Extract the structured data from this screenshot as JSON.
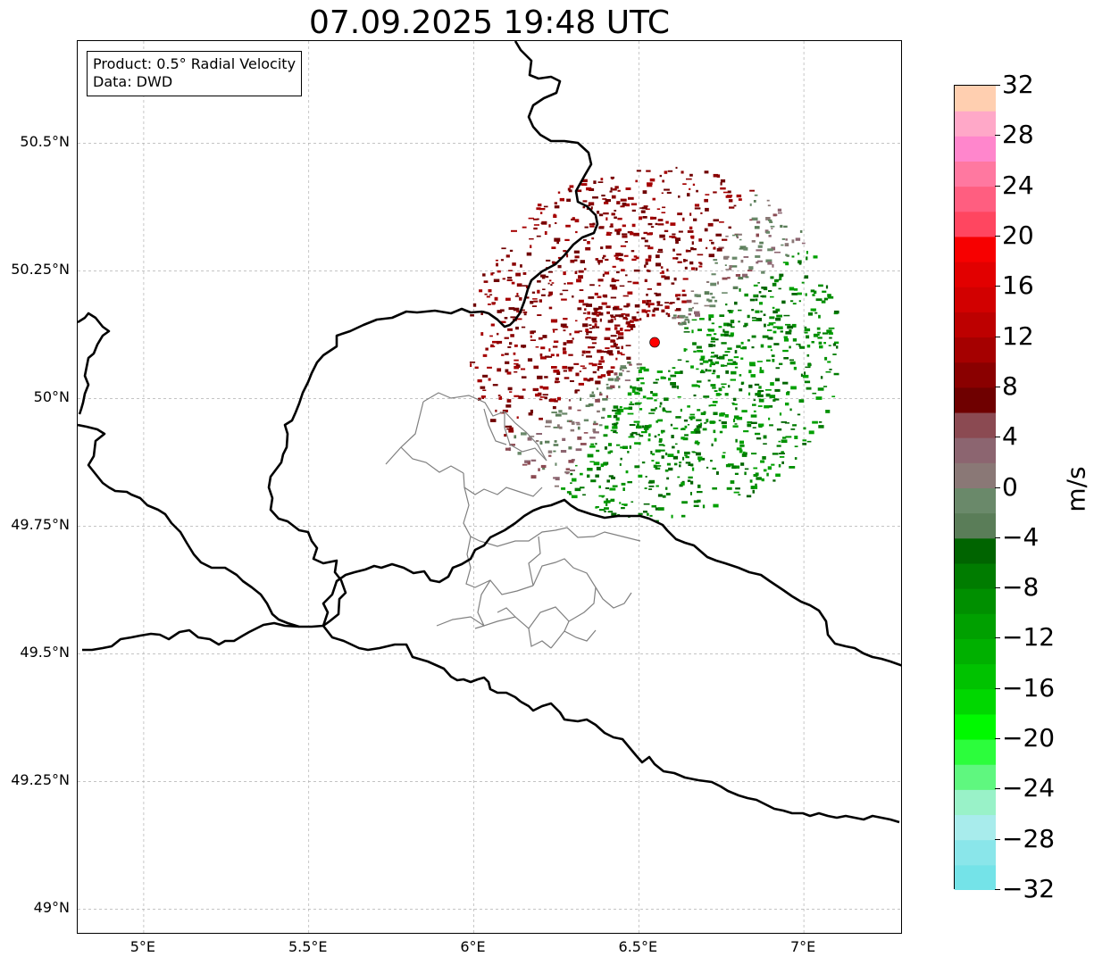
{
  "title": "07.09.2025 19:48 UTC",
  "info": {
    "product": "Product: 0.5° Radial Velocity",
    "data": "Data: DWD"
  },
  "map": {
    "extent": {
      "lon_min": 4.8,
      "lon_max": 7.3,
      "lat_min": 48.95,
      "lat_max": 50.7
    },
    "lat_ticks": [
      {
        "value": 50.5,
        "label": "50.5°N"
      },
      {
        "value": 50.25,
        "label": "50.25°N"
      },
      {
        "value": 50.0,
        "label": "50°N"
      },
      {
        "value": 49.75,
        "label": "49.75°N"
      },
      {
        "value": 49.5,
        "label": "49.5°N"
      },
      {
        "value": 49.25,
        "label": "49.25°N"
      },
      {
        "value": 49.0,
        "label": "49°N"
      }
    ],
    "lon_ticks": [
      {
        "value": 5.0,
        "label": "5°E"
      },
      {
        "value": 5.5,
        "label": "5.5°E"
      },
      {
        "value": 6.0,
        "label": "6°E"
      },
      {
        "value": 6.5,
        "label": "6.5°E"
      },
      {
        "value": 7.0,
        "label": "7°E"
      }
    ],
    "radar_site": {
      "lon": 6.548,
      "lat": 50.11,
      "color": "#ff0000"
    },
    "border_color": "#000000",
    "admin_color": "#808080",
    "grid": true
  },
  "colorbar": {
    "unit": "m/s",
    "min": -32,
    "max": 32,
    "step": 2,
    "colors": [
      "#74e3e8",
      "#8ae6ea",
      "#a8ecec",
      "#99f2c8",
      "#5ff77f",
      "#2cfd3c",
      "#00f900",
      "#00d700",
      "#00c200",
      "#00b000",
      "#00a000",
      "#008f00",
      "#007c00",
      "#006400",
      "#5a7d58",
      "#6a896a",
      "#8a7876",
      "#8c6570",
      "#8b4a52",
      "#6f0000",
      "#8a0000",
      "#a50000",
      "#bd0000",
      "#d20000",
      "#e20000",
      "#f70000",
      "#ff4660",
      "#ff5e80",
      "#ff78a0",
      "#ff86cc",
      "#ffa8c8",
      "#ffcfb0"
    ],
    "labels": [
      "32",
      "28",
      "24",
      "20",
      "16",
      "12",
      "8",
      "4",
      "0",
      "−4",
      "−8",
      "−12",
      "−16",
      "−20",
      "−24",
      "−28",
      "−32"
    ]
  }
}
